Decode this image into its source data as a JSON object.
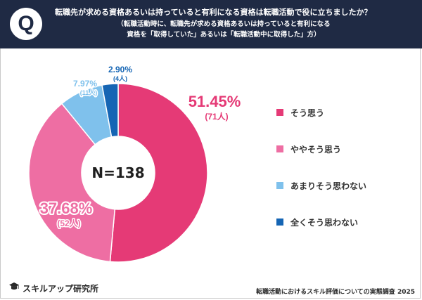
{
  "question": {
    "badge": "Q",
    "title": "転職先が求める資格あるいは持っていると有利になる資格は転職活動で役に立ちましたか？",
    "subtitle_line1": "（転職活動時に、転職先が求める資格あるいは持っていると有利になる",
    "subtitle_line2": "資格を「取得していた」あるいは「転職活動中に取得した」方）"
  },
  "chart_data": {
    "type": "pie",
    "donut": true,
    "center_label": "N=138",
    "series": [
      {
        "name": "そう思う",
        "percent_label": "51.45%",
        "count_label": "(71人)",
        "value": 71,
        "color": "#e53a76"
      },
      {
        "name": "ややそう思う",
        "percent_label": "37.68%",
        "count_label": "(52人)",
        "value": 52,
        "color": "#ee6ea3"
      },
      {
        "name": "あまりそう思わない",
        "percent_label": "7.97%",
        "count_label": "(11人)",
        "value": 11,
        "color": "#7fc1ec"
      },
      {
        "name": "全くそう思わない",
        "percent_label": "2.90%",
        "count_label": "(4人)",
        "value": 4,
        "color": "#1565b4"
      }
    ],
    "legend_position": "right"
  },
  "footer": {
    "brand": "スキルアップ研究所",
    "source": "転職活動におけるスキル評価についての実態調査 2025"
  },
  "colors": {
    "header_bg": "#1f2a44",
    "label_stroke": "#ffffff"
  }
}
